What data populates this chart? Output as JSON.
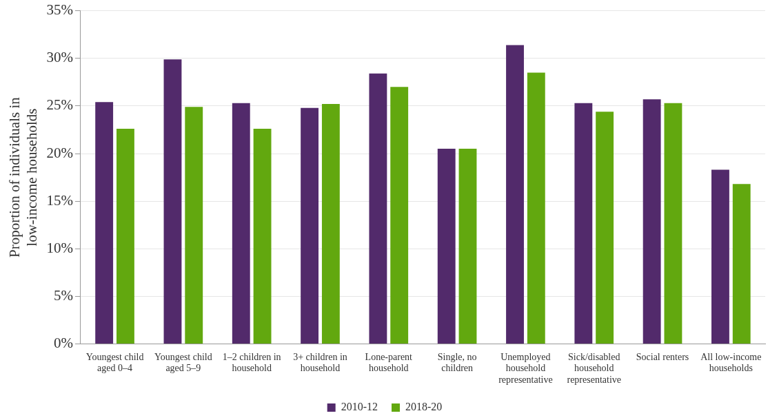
{
  "chart_data": {
    "type": "bar",
    "ylabel": "Proportion of individuals in low-income households",
    "categories": [
      "Youngest child aged 0–4",
      "Youngest child aged 5–9",
      "1–2 children in household",
      "3+ children in household",
      "Lone-parent household",
      "Single, no children",
      "Unemployed household representative",
      "Sick/disabled household representative",
      "Social renters",
      "All low-income households"
    ],
    "series": [
      {
        "name": "2010-12",
        "color": "#522a6b",
        "values": [
          25.4,
          29.9,
          25.3,
          24.8,
          28.4,
          20.5,
          31.4,
          25.3,
          25.7,
          18.3
        ]
      },
      {
        "name": "2018-20",
        "color": "#62a80f",
        "values": [
          22.6,
          24.9,
          22.6,
          25.2,
          27.0,
          20.5,
          28.5,
          24.4,
          25.3,
          16.8
        ]
      }
    ],
    "ylim": [
      0,
      35
    ],
    "yticks": [
      {
        "value": 0,
        "label": "0%"
      },
      {
        "value": 5,
        "label": "5%"
      },
      {
        "value": 10,
        "label": "10%"
      },
      {
        "value": 15,
        "label": "15%"
      },
      {
        "value": 20,
        "label": "20%"
      },
      {
        "value": 25,
        "label": "25%"
      },
      {
        "value": 30,
        "label": "30%"
      },
      {
        "value": 35,
        "label": "35%"
      }
    ],
    "grid": "y",
    "legend": "bottom"
  }
}
